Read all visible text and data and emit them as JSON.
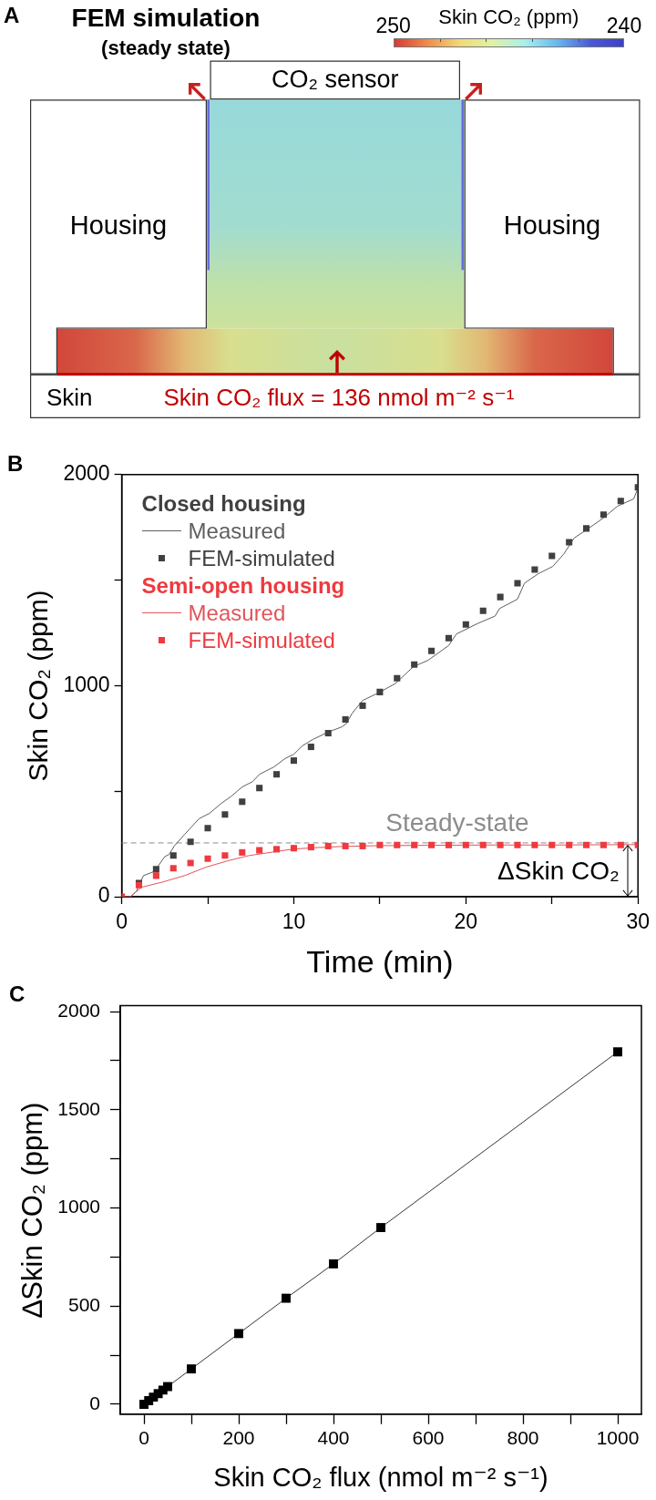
{
  "chart_data": [
    {
      "type": "other",
      "title": "FEM simulation",
      "subtitle": "(steady state)",
      "clabel": "Skin CO₂ (ppm)",
      "annotations": [
        "A",
        "CO₂ sensor",
        "Housing",
        "Housing",
        "Skin",
        "Skin CO₂ flux = 136 nmol m⁻² s⁻¹",
        "250",
        "240"
      ]
    },
    {
      "type": "line",
      "xlabel": "Time (min)",
      "ylabel": "Skin CO₂ (ppm)",
      "annotations": [
        "B",
        "Closed housing",
        "Semi-open housing",
        {
          "text": "ΔSkin CO₂",
          "x": 29.4,
          "y": 245
        }
      ],
      "legend": "top left",
      "marker": "square",
      "xlim": [
        0,
        30
      ],
      "xticks": [
        0,
        {
          "value": 5,
          "label": null
        },
        10,
        {
          "value": 15,
          "label": null
        },
        20,
        {
          "value": 25,
          "label": null
        },
        30
      ],
      "ylim": [
        0,
        2000
      ],
      "yticks": [
        0,
        {
          "value": 500,
          "label": null
        },
        1000,
        {
          "value": 1500,
          "label": null
        },
        2000
      ],
      "ref_lines": [
        {
          "axis": "y",
          "value": 255,
          "label": "Steady-state",
          "color": "#8c8c8c",
          "line_style": "dashed"
        }
      ],
      "series": [
        {
          "name": "Measured",
          "type": "line",
          "marker": "none",
          "color": "#5e5e5e",
          "x": [
            0,
            0.5,
            0.85,
            1.26,
            1.9,
            2.5,
            2.75,
            3.05,
            3.65,
            4.5,
            5.1,
            5.75,
            6.35,
            7.0,
            7.6,
            8.0,
            8.85,
            9.5,
            10.0,
            10.5,
            11.1,
            12.0,
            12.8,
            13.05,
            13.4,
            14.0,
            14.9,
            15.9,
            16.95,
            17.8,
            19.0,
            19.45,
            20.7,
            21.7,
            21.95,
            23.0,
            23.4,
            24.2,
            25.05,
            25.7,
            26.3,
            26.95,
            28.0,
            28.8,
            29.75,
            30
          ],
          "values": [
            0,
            0,
            25,
            100,
            120,
            190,
            200,
            240,
            295,
            370,
            395,
            440,
            475,
            520,
            545,
            580,
            615,
            655,
            675,
            715,
            745,
            780,
            805,
            820,
            870,
            930,
            965,
            1010,
            1090,
            1120,
            1190,
            1245,
            1295,
            1330,
            1365,
            1410,
            1485,
            1530,
            1565,
            1625,
            1700,
            1735,
            1795,
            1850,
            1885,
            1935
          ]
        },
        {
          "name": "FEM-simulated",
          "type": "scatter",
          "color": "#404040",
          "x": [
            1,
            2,
            3,
            4,
            5,
            6,
            7,
            8,
            9,
            10,
            11,
            12,
            13,
            14,
            15,
            16,
            17,
            18,
            19,
            20,
            21,
            22,
            23,
            24,
            25,
            26,
            27,
            28,
            29,
            30
          ],
          "values": [
            65,
            130,
            195,
            260,
            325,
            390,
            450,
            515,
            580,
            645,
            710,
            775,
            840,
            905,
            970,
            1035,
            1100,
            1165,
            1225,
            1290,
            1355,
            1420,
            1485,
            1550,
            1615,
            1680,
            1745,
            1810,
            1875,
            1940
          ]
        },
        {
          "name": "Measured",
          "type": "line",
          "marker": "none",
          "color": "#e0555a",
          "x": [
            0,
            0.5,
            1.15,
            2.4,
            3.65,
            4.9,
            6.15,
            7.4,
            8.65,
            9.9,
            11.1,
            12.8,
            14.9,
            17.0,
            21.0,
            25.0,
            30
          ],
          "values": [
            0,
            0,
            45,
            70,
            100,
            140,
            170,
            195,
            210,
            225,
            232,
            238,
            242,
            243,
            245,
            245,
            247
          ]
        },
        {
          "name": "FEM-simulated",
          "type": "scatter",
          "color": "#ee3a3f",
          "x": [
            0,
            1,
            2,
            3,
            4,
            5,
            6,
            7,
            8,
            9,
            10,
            11,
            12,
            13,
            14,
            15,
            16,
            17,
            18,
            19,
            20,
            21,
            22,
            23,
            24,
            25,
            26,
            27,
            28,
            29,
            30
          ],
          "values": [
            0,
            55,
            100,
            135,
            160,
            180,
            195,
            210,
            220,
            225,
            230,
            235,
            240,
            240,
            240,
            245,
            245,
            245,
            245,
            245,
            245,
            245,
            245,
            245,
            245,
            245,
            245,
            245,
            245,
            245,
            245
          ]
        }
      ]
    },
    {
      "type": "line",
      "xlabel": "Skin CO₂ flux (nmol m⁻² s⁻¹)",
      "ylabel": "∆Skin CO₂ (ppm)",
      "annotations": [
        "C"
      ],
      "marker": "square",
      "x": [
        0,
        10,
        20,
        30,
        40,
        50,
        100,
        200,
        300,
        400,
        500,
        1000
      ],
      "xlim": [
        -50,
        1050
      ],
      "xticks": [
        0,
        {
          "value": 100,
          "label": null
        },
        200,
        {
          "value": 300,
          "label": null
        },
        400,
        {
          "value": 500,
          "label": null
        },
        600,
        {
          "value": 700,
          "label": null
        },
        800,
        {
          "value": 900,
          "label": null
        },
        1000
      ],
      "ylim": [
        -50,
        2030
      ],
      "yticks": [
        0,
        {
          "value": 250,
          "label": null
        },
        500,
        {
          "value": 750,
          "label": null
        },
        1000,
        {
          "value": 1250,
          "label": null
        },
        1500,
        {
          "value": 1750,
          "label": null
        },
        2000
      ],
      "series": [
        {
          "color": "#000000",
          "values": [
            0,
            18,
            36,
            54,
            72,
            90,
            180,
            360,
            540,
            715,
            900,
            1795
          ]
        }
      ]
    }
  ]
}
